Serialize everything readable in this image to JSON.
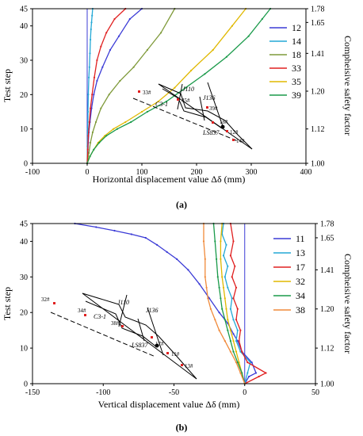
{
  "chart_data": [
    {
      "type": "line",
      "panel_label": "(a)",
      "xlabel": "Horizontal displacement value Δδ (mm)",
      "ylabel": "Test step",
      "y2label": "Compheisive safety factor",
      "xlim": [
        -100,
        400
      ],
      "ylim": [
        0,
        45
      ],
      "xticks": [
        -100,
        0,
        100,
        200,
        300,
        400
      ],
      "yticks": [
        0,
        10,
        20,
        30,
        40,
        45
      ],
      "y2ticks": [
        {
          "step": 45,
          "label": "1.78"
        },
        {
          "step": 41,
          "label": "1.65"
        },
        {
          "step": 32,
          "label": "1.41"
        },
        {
          "step": 21,
          "label": "1.20"
        },
        {
          "step": 10,
          "label": "1.12"
        },
        {
          "step": 0,
          "label": "1.00"
        }
      ],
      "legend_position": "right",
      "series": [
        {
          "name": "12",
          "color": "#3b3bd6",
          "x": [
            0,
            1,
            2,
            3,
            5,
            8,
            12,
            18,
            28,
            42,
            58,
            78,
            100
          ],
          "y": [
            0,
            3,
            6,
            9,
            12,
            16,
            20,
            24,
            28,
            33,
            37,
            42,
            45
          ]
        },
        {
          "name": "14",
          "color": "#24a9d6",
          "x": [
            0,
            0.5,
            1,
            1.5,
            2,
            3,
            4,
            5,
            6,
            7,
            8,
            9,
            10
          ],
          "y": [
            0,
            5,
            10,
            15,
            20,
            25,
            28,
            32,
            36,
            39,
            41,
            43,
            45
          ]
        },
        {
          "name": "18",
          "color": "#7f9a3a",
          "x": [
            0,
            3,
            6,
            10,
            16,
            25,
            40,
            60,
            85,
            110,
            135,
            160
          ],
          "y": [
            0,
            3,
            6,
            9,
            12,
            16,
            20,
            24,
            28,
            33,
            38,
            45
          ]
        },
        {
          "name": "33",
          "color": "#e02020",
          "x": [
            0,
            1,
            2,
            4,
            6,
            9,
            13,
            18,
            25,
            35,
            50,
            70
          ],
          "y": [
            0,
            4,
            8,
            12,
            16,
            20,
            25,
            30,
            34,
            38,
            42,
            45
          ]
        },
        {
          "name": "35",
          "color": "#e0b800",
          "x": [
            0,
            5,
            12,
            20,
            32,
            48,
            70,
            100,
            130,
            160,
            190,
            230,
            265,
            290
          ],
          "y": [
            0,
            2,
            4,
            6,
            8,
            10,
            12,
            15,
            18,
            22,
            27,
            33,
            40,
            45
          ]
        },
        {
          "name": "39",
          "color": "#1a9a4a",
          "x": [
            0,
            5,
            12,
            22,
            35,
            55,
            80,
            110,
            145,
            180,
            215,
            255,
            295,
            320,
            335
          ],
          "y": [
            0,
            2,
            4,
            6,
            8,
            10,
            12,
            15,
            18,
            22,
            26,
            31,
            37,
            42,
            45
          ]
        }
      ],
      "inset_labels": [
        "C3-1",
        "J110",
        "J136",
        "LS837",
        "33#",
        "35#",
        "39#",
        "18#",
        "12#",
        "14#"
      ]
    },
    {
      "type": "line",
      "panel_label": "(b)",
      "xlabel": "Vertical displacement value Δδ (mm)",
      "ylabel": "Test step",
      "y2label": "Compheisive safety factor",
      "xlim": [
        -150,
        50
      ],
      "ylim": [
        0,
        45
      ],
      "xticks": [
        -150,
        -100,
        -50,
        0,
        50
      ],
      "yticks": [
        0,
        10,
        20,
        30,
        40,
        45
      ],
      "y2ticks": [
        {
          "step": 45,
          "label": "1.78"
        },
        {
          "step": 41,
          "label": "1.65"
        },
        {
          "step": 32,
          "label": "1.41"
        },
        {
          "step": 21,
          "label": "1.20"
        },
        {
          "step": 10,
          "label": "1.12"
        },
        {
          "step": 0,
          "label": "1.00"
        }
      ],
      "legend_position": "right",
      "series": [
        {
          "name": "11",
          "color": "#3b3bd6",
          "x": [
            0,
            3,
            8,
            5,
            -2,
            -5,
            -8,
            -12,
            -18,
            -25,
            -32,
            -40,
            -48,
            -55,
            -62,
            -70,
            -80,
            -92,
            -105,
            -120
          ],
          "y": [
            0,
            2,
            3,
            6,
            9,
            12,
            14,
            17,
            20,
            24,
            28,
            32,
            35,
            37,
            39,
            41,
            42,
            43,
            44,
            45
          ]
        },
        {
          "name": "13",
          "color": "#24a9d6",
          "x": [
            0,
            2,
            4,
            -3,
            -6,
            -5,
            -8,
            -10,
            -9,
            -12,
            -14,
            -12,
            -15,
            -13,
            -16,
            -15
          ],
          "y": [
            0,
            3,
            6,
            9,
            12,
            15,
            18,
            21,
            24,
            27,
            30,
            33,
            36,
            39,
            42,
            45
          ]
        },
        {
          "name": "17",
          "color": "#e02020",
          "x": [
            0,
            10,
            15,
            2,
            -2,
            -4,
            -3,
            -6,
            -5,
            -8,
            -6,
            -9,
            -7,
            -10,
            -8,
            -10
          ],
          "y": [
            0,
            2,
            3,
            6,
            9,
            12,
            15,
            18,
            21,
            24,
            27,
            30,
            33,
            36,
            40,
            45
          ]
        },
        {
          "name": "32",
          "color": "#e0b800",
          "x": [
            0,
            -2,
            -4,
            -6,
            -8,
            -10,
            -12,
            -13,
            -14,
            -15,
            -16,
            -17,
            -17,
            -16
          ],
          "y": [
            0,
            3,
            6,
            9,
            12,
            15,
            18,
            21,
            24,
            27,
            30,
            35,
            40,
            45
          ]
        },
        {
          "name": "34",
          "color": "#1a9a4a",
          "x": [
            0,
            -2,
            -5,
            -8,
            -10,
            -12,
            -14,
            -16,
            -17,
            -18,
            -19,
            -20,
            -21,
            -22
          ],
          "y": [
            0,
            3,
            6,
            9,
            12,
            15,
            18,
            21,
            24,
            27,
            30,
            35,
            40,
            45
          ]
        },
        {
          "name": "38",
          "color": "#f08a3a",
          "x": [
            0,
            -3,
            -6,
            -10,
            -14,
            -18,
            -21,
            -24,
            -26,
            -27,
            -28,
            -28,
            -29,
            -29
          ],
          "y": [
            0,
            3,
            6,
            9,
            12,
            15,
            18,
            21,
            24,
            27,
            30,
            35,
            40,
            45
          ]
        }
      ],
      "inset_labels": [
        "C3-1",
        "J110",
        "J136",
        "LS837",
        "32#",
        "34#",
        "38#",
        "17#",
        "11#",
        "13#"
      ]
    }
  ]
}
